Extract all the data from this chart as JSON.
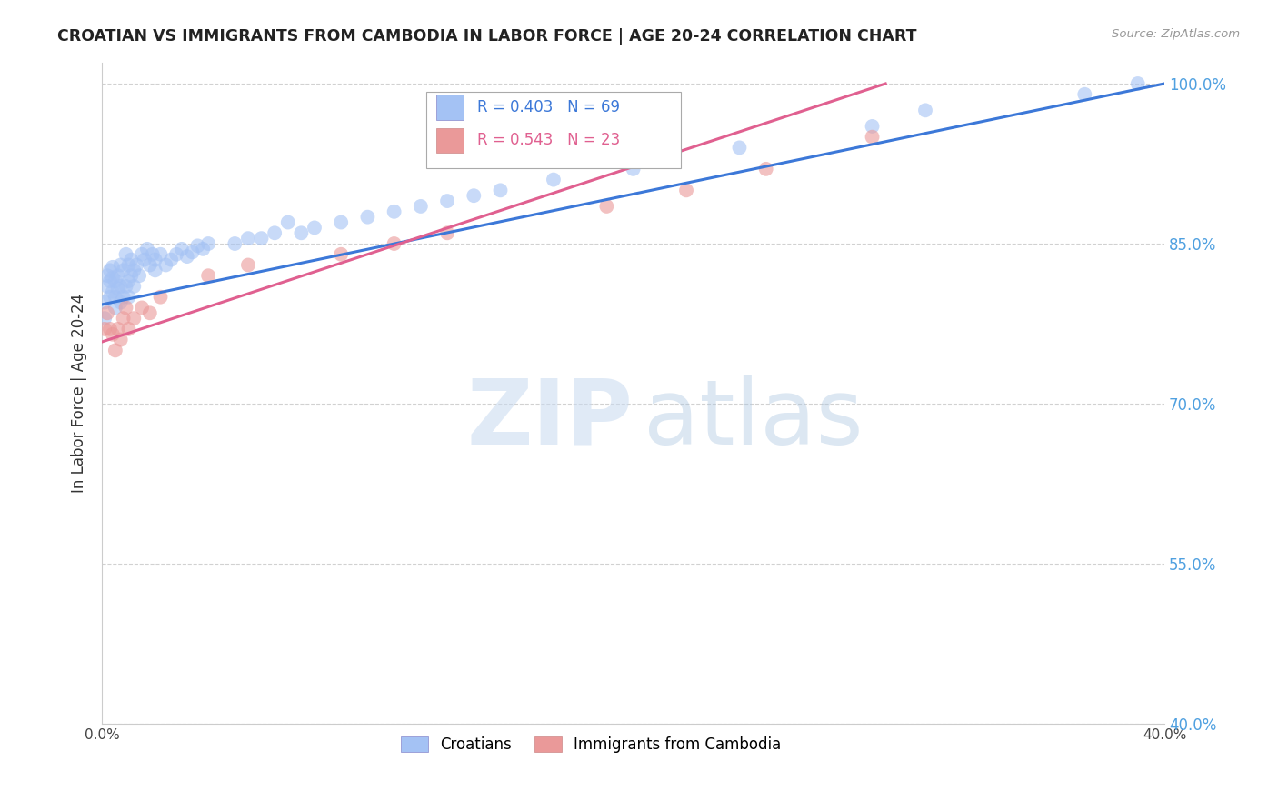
{
  "title": "CROATIAN VS IMMIGRANTS FROM CAMBODIA IN LABOR FORCE | AGE 20-24 CORRELATION CHART",
  "source": "Source: ZipAtlas.com",
  "ylabel": "In Labor Force | Age 20-24",
  "xlim": [
    0.0,
    0.4
  ],
  "ylim": [
    0.4,
    1.02
  ],
  "xticks": [
    0.0,
    0.05,
    0.1,
    0.15,
    0.2,
    0.25,
    0.3,
    0.35,
    0.4
  ],
  "xticklabels": [
    "0.0%",
    "",
    "",
    "",
    "",
    "",
    "",
    "",
    "40.0%"
  ],
  "yticks": [
    0.4,
    0.55,
    0.7,
    0.85,
    1.0
  ],
  "yticklabels": [
    "40.0%",
    "55.0%",
    "70.0%",
    "85.0%",
    "100.0%"
  ],
  "blue_R": 0.403,
  "blue_N": 69,
  "pink_R": 0.543,
  "pink_N": 23,
  "blue_color": "#a4c2f4",
  "pink_color": "#ea9999",
  "blue_line_color": "#3c78d8",
  "pink_line_color": "#e06090",
  "legend_label_blue": "Croatians",
  "legend_label_pink": "Immigrants from Cambodia",
  "blue_scatter_x": [
    0.001,
    0.001,
    0.002,
    0.002,
    0.003,
    0.003,
    0.003,
    0.004,
    0.004,
    0.004,
    0.005,
    0.005,
    0.005,
    0.006,
    0.006,
    0.007,
    0.007,
    0.007,
    0.008,
    0.008,
    0.009,
    0.009,
    0.01,
    0.01,
    0.01,
    0.011,
    0.011,
    0.012,
    0.012,
    0.013,
    0.014,
    0.015,
    0.016,
    0.017,
    0.018,
    0.019,
    0.02,
    0.02,
    0.022,
    0.024,
    0.026,
    0.028,
    0.03,
    0.032,
    0.034,
    0.036,
    0.038,
    0.04,
    0.05,
    0.055,
    0.06,
    0.065,
    0.07,
    0.075,
    0.08,
    0.09,
    0.1,
    0.11,
    0.12,
    0.13,
    0.14,
    0.15,
    0.17,
    0.2,
    0.24,
    0.29,
    0.31,
    0.37,
    0.39
  ],
  "blue_scatter_y": [
    0.78,
    0.795,
    0.81,
    0.82,
    0.8,
    0.815,
    0.825,
    0.805,
    0.818,
    0.828,
    0.79,
    0.8,
    0.815,
    0.808,
    0.82,
    0.795,
    0.81,
    0.83,
    0.8,
    0.825,
    0.81,
    0.84,
    0.8,
    0.815,
    0.83,
    0.82,
    0.835,
    0.81,
    0.825,
    0.83,
    0.82,
    0.84,
    0.835,
    0.845,
    0.83,
    0.84,
    0.825,
    0.835,
    0.84,
    0.83,
    0.835,
    0.84,
    0.845,
    0.838,
    0.842,
    0.848,
    0.845,
    0.85,
    0.85,
    0.855,
    0.855,
    0.86,
    0.87,
    0.86,
    0.865,
    0.87,
    0.875,
    0.88,
    0.885,
    0.89,
    0.895,
    0.9,
    0.91,
    0.92,
    0.94,
    0.96,
    0.975,
    0.99,
    1.0
  ],
  "pink_scatter_x": [
    0.001,
    0.002,
    0.003,
    0.004,
    0.005,
    0.006,
    0.007,
    0.008,
    0.009,
    0.01,
    0.012,
    0.015,
    0.018,
    0.022,
    0.04,
    0.055,
    0.09,
    0.11,
    0.13,
    0.19,
    0.22,
    0.25,
    0.29
  ],
  "pink_scatter_y": [
    0.77,
    0.785,
    0.77,
    0.765,
    0.75,
    0.77,
    0.76,
    0.78,
    0.79,
    0.77,
    0.78,
    0.79,
    0.785,
    0.8,
    0.82,
    0.83,
    0.84,
    0.85,
    0.86,
    0.885,
    0.9,
    0.92,
    0.95
  ],
  "blue_line_x0": 0.0,
  "blue_line_y0": 0.793,
  "blue_line_x1": 0.4,
  "blue_line_y1": 1.0,
  "pink_line_x0": 0.0,
  "pink_line_y0": 0.758,
  "pink_line_x1": 0.295,
  "pink_line_y1": 1.0
}
